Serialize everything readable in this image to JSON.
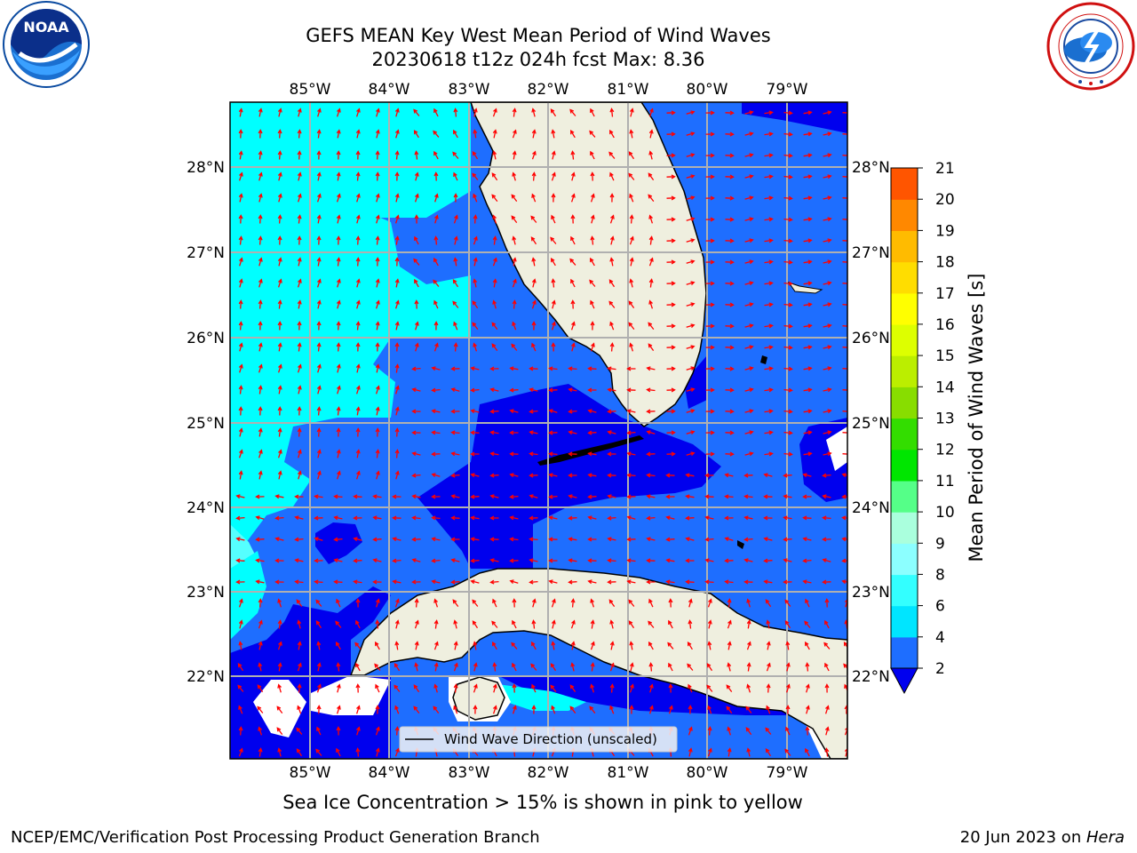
{
  "title_line1": "GEFS MEAN Key West Mean Period of Wind Waves",
  "title_line2": "20230618 t12z 024h fcst   Max: 8.36",
  "lon_labels": [
    "85°W",
    "84°W",
    "83°W",
    "82°W",
    "81°W",
    "80°W",
    "79°W"
  ],
  "lat_labels": [
    "28°N",
    "27°N",
    "26°N",
    "25°N",
    "24°N",
    "23°N",
    "22°N"
  ],
  "legend_label": "Wind Wave Direction (unscaled)",
  "colorbar": {
    "label": "Mean Period of Wind Waves [s]",
    "ticks": [
      2,
      4,
      6,
      8,
      9,
      10,
      11,
      12,
      13,
      14,
      15,
      16,
      17,
      18,
      19,
      20,
      21
    ],
    "colors": [
      "#1e6eff",
      "#00e5ff",
      "#33ffff",
      "#8cffff",
      "#aaffdd",
      "#55ff88",
      "#00e600",
      "#33dd00",
      "#88dd00",
      "#bbee00",
      "#ddff00",
      "#ffff00",
      "#ffdd00",
      "#ffbb00",
      "#ff8800",
      "#ff5500",
      "#ff2a00",
      "#ff0000"
    ],
    "under_color": "#0000ee"
  },
  "ice_note": "Sea Ice Concentration > 15% is shown in pink to yellow",
  "credit": "NCEP/EMC/Verification Post Processing Product Generation Branch",
  "date_text": "20 Jun 2023 on ",
  "date_host": "Hera",
  "noaa_logo_text": "NOAA",
  "colors": {
    "land": "#efefdf",
    "deep_blue": "#0000ee",
    "mid_blue": "#1e6eff",
    "cyan": "#00ffff",
    "light_cyan": "#55ffff",
    "arrow": "#ff0000",
    "grid": "#b0b0b0"
  }
}
